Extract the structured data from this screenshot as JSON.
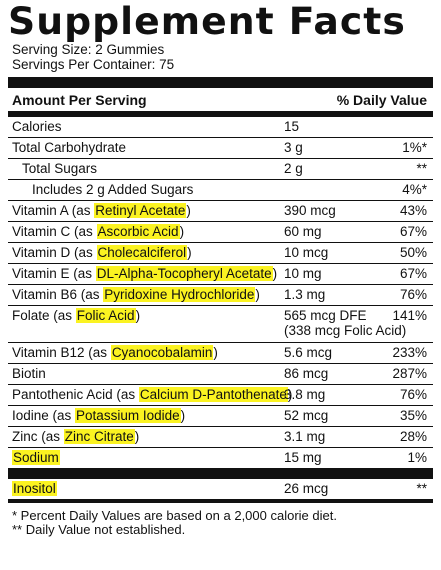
{
  "title": "Supplement Facts",
  "serving_size": "Serving Size: 2 Gummies",
  "servings_per_container": "Servings Per Container: 75",
  "header": {
    "amount": "Amount Per Serving",
    "dv": "% Daily Value"
  },
  "rows": [
    {
      "name": "Calories",
      "highlight": "",
      "suffix": "",
      "amount": "15",
      "dv": ""
    },
    {
      "name": "Total Carbohydrate",
      "highlight": "",
      "suffix": "",
      "amount": "3 g",
      "dv": "1%*"
    },
    {
      "name": "Total Sugars",
      "highlight": "",
      "suffix": "",
      "amount": "2 g",
      "dv": "**"
    },
    {
      "name": "Includes 2 g Added Sugars",
      "highlight": "",
      "suffix": "",
      "amount": "",
      "dv": "4%*"
    },
    {
      "name": "Vitamin A (as ",
      "highlight": "Retinyl Acetate",
      "suffix": ")",
      "amount": "390 mcg",
      "dv": "43%"
    },
    {
      "name": "Vitamin C (as ",
      "highlight": "Ascorbic Acid",
      "suffix": ")",
      "amount": "60 mg",
      "dv": "67%"
    },
    {
      "name": "Vitamin D (as ",
      "highlight": "Cholecalciferol",
      "suffix": ")",
      "amount": "10 mcg",
      "dv": "50%"
    },
    {
      "name": "Vitamin E (as ",
      "highlight": "DL-Alpha-Tocopheryl Acetate",
      "suffix": ")",
      "amount": "10 mg",
      "dv": "67%"
    },
    {
      "name": "Vitamin B6 (as ",
      "highlight": "Pyridoxine Hydrochloride",
      "suffix": ")",
      "amount": "1.3 mg",
      "dv": "76%"
    },
    {
      "name": "Folate (as ",
      "highlight": "Folic Acid",
      "suffix": ")",
      "amount": "565 mcg DFE",
      "amount2": "(338 mcg Folic Acid)",
      "dv": "141%"
    },
    {
      "name": "Vitamin B12 (as ",
      "highlight": "Cyanocobalamin",
      "suffix": ")",
      "amount": "5.6 mcg",
      "dv": "233%"
    },
    {
      "name": "Biotin",
      "highlight": "",
      "suffix": "",
      "amount": "86 mcg",
      "dv": "287%"
    },
    {
      "name": "Pantothenic Acid (as ",
      "highlight": "Calcium D-Pantothenate",
      "suffix": ")",
      "amount": "3.8 mg",
      "dv": "76%"
    },
    {
      "name": "Iodine (as ",
      "highlight": "Potassium Iodide",
      "suffix": ")",
      "amount": "52 mcg",
      "dv": "35%"
    },
    {
      "name": "Zinc (as ",
      "highlight": "Zinc Citrate",
      "suffix": ")",
      "amount": "3.1 mg",
      "dv": "28%"
    },
    {
      "name": "",
      "highlight": "Sodium",
      "suffix": "",
      "amount": "15 mg",
      "dv": "1%"
    },
    {
      "name": "",
      "highlight": "Inositol",
      "suffix": "",
      "amount": "26 mcg",
      "dv": "**"
    }
  ],
  "footnotes": [
    "* Percent Daily Values are based on a 2,000 calorie diet.",
    "** Daily Value not established."
  ],
  "colors": {
    "highlight": "#fbf321",
    "rule": "#111111"
  }
}
